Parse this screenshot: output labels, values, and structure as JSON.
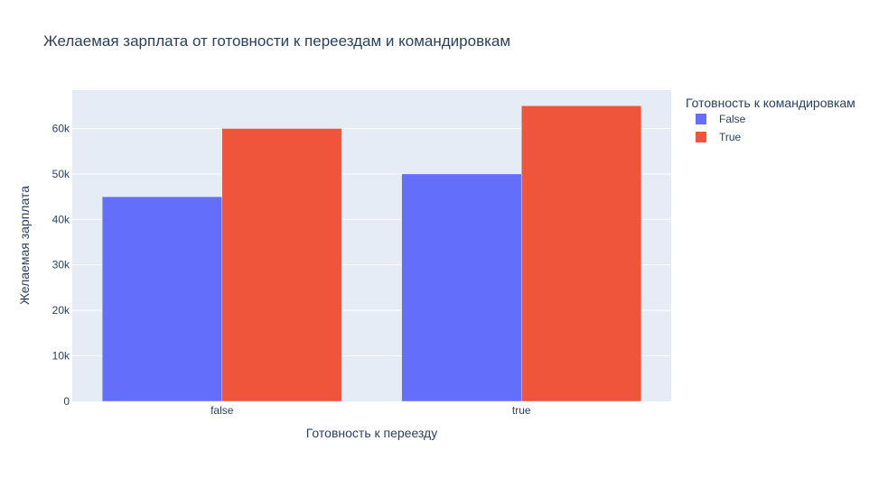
{
  "chart_data": {
    "type": "bar",
    "title": "Желаемая зарплата от готовности к переездам и командировкам",
    "xlabel": "Готовность к переезду",
    "ylabel": "Желаемая зарплата",
    "categories": [
      "false",
      "true"
    ],
    "series": [
      {
        "name": "False",
        "values": [
          45000,
          50000
        ],
        "color": "#636efa"
      },
      {
        "name": "True",
        "values": [
          60000,
          65000
        ],
        "color": "#ef553b"
      }
    ],
    "ylim": [
      0,
      68421
    ],
    "yticks": [
      0,
      10000,
      20000,
      30000,
      40000,
      50000,
      60000
    ],
    "ytick_labels": [
      "0",
      "10k",
      "20k",
      "30k",
      "40k",
      "50k",
      "60k"
    ],
    "legend": {
      "title": "Готовность к командировкам",
      "placement": "top-right"
    },
    "grid": true,
    "plot_background": "#e5ecf6"
  }
}
